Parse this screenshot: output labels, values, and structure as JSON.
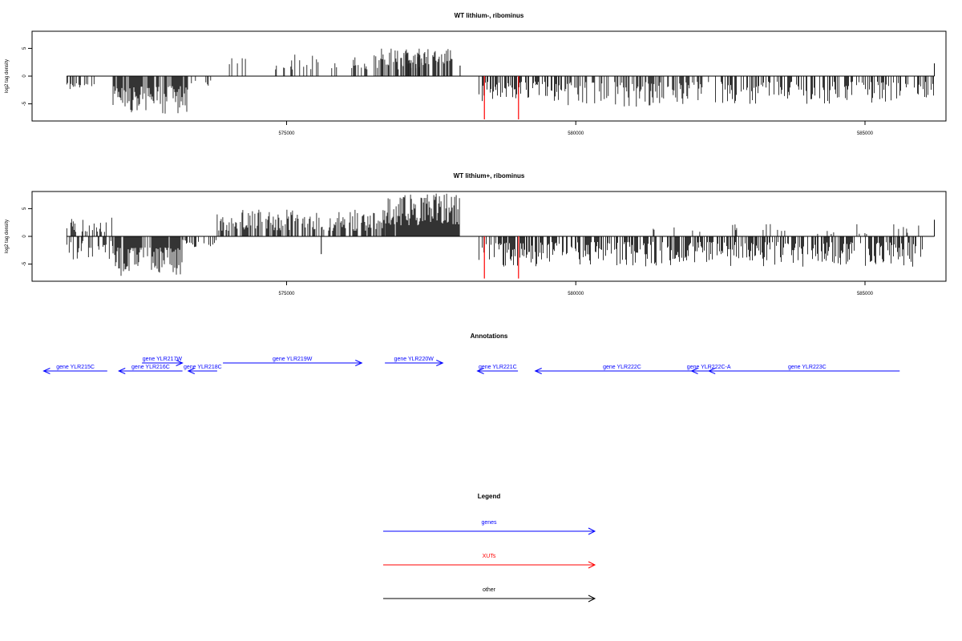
{
  "chart_data": [
    {
      "type": "bar",
      "title": "WT lithium-, ribominus",
      "ylabel": "log2 tag density",
      "xlabel": "",
      "xlim": [
        570600,
        586400
      ],
      "ylim": [
        -7.8,
        7.8
      ],
      "x_ticks": [
        575000,
        580000,
        585000
      ],
      "x_tick_labels": [
        "575000",
        "580000",
        "585000"
      ],
      "y_ticks": [
        -5,
        0,
        5
      ],
      "y_tick_labels": [
        "-5",
        "0",
        "5"
      ],
      "grid": false,
      "segments": [
        {
          "from": 571200,
          "to": 571700,
          "sign": -1,
          "min": 1.2,
          "max": 3.0,
          "density": 0.45
        },
        {
          "from": 572000,
          "to": 573300,
          "sign": -1,
          "min": 1.8,
          "max": 6.8,
          "density": 0.75
        },
        {
          "from": 573300,
          "to": 573700,
          "sign": -1,
          "min": 0.6,
          "max": 1.8,
          "density": 0.25
        },
        {
          "from": 573900,
          "to": 574300,
          "sign": 1,
          "min": 1.5,
          "max": 3.4,
          "density": 0.25
        },
        {
          "from": 574700,
          "to": 577400,
          "sign": 1,
          "min": 1.2,
          "max": 3.9,
          "density": 0.3
        },
        {
          "from": 576600,
          "to": 577900,
          "sign": 1,
          "min": 2.0,
          "max": 5.0,
          "density": 0.7
        },
        {
          "from": 578300,
          "to": 579800,
          "sign": -1,
          "min": 1.0,
          "max": 4.5,
          "density": 0.55
        },
        {
          "from": 579800,
          "to": 582300,
          "sign": -1,
          "min": 1.0,
          "max": 5.5,
          "density": 0.45
        },
        {
          "from": 582400,
          "to": 586200,
          "sign": -1,
          "min": 1.0,
          "max": 5.0,
          "density": 0.45
        }
      ],
      "points": [
        {
          "x": 578000,
          "y": 1.9
        },
        {
          "x": 586200,
          "y": 2.3
        }
      ],
      "highlights": [
        {
          "x": 578420,
          "y": -7.8,
          "color": "#ff0000"
        },
        {
          "x": 579010,
          "y": -7.8,
          "color": "#ff0000"
        }
      ],
      "bar_color": "#000000",
      "seed": 11
    },
    {
      "type": "bar",
      "title": "WT lithium+, ribominus",
      "ylabel": "log2 tag density",
      "xlabel": "",
      "xlim": [
        570600,
        586400
      ],
      "ylim": [
        -7.8,
        7.8
      ],
      "x_ticks": [
        575000,
        580000,
        585000
      ],
      "x_tick_labels": [
        "575000",
        "580000",
        "585000"
      ],
      "y_ticks": [
        -5,
        0,
        5
      ],
      "y_tick_labels": [
        "-5",
        "0",
        "5"
      ],
      "grid": false,
      "segments": [
        {
          "from": 571200,
          "to": 572000,
          "sign": 1,
          "min": 0.8,
          "max": 3.5,
          "density": 0.35
        },
        {
          "from": 571200,
          "to": 572000,
          "sign": -1,
          "min": 0.8,
          "max": 4.5,
          "density": 0.5
        },
        {
          "from": 572000,
          "to": 573200,
          "sign": -1,
          "min": 2.0,
          "max": 7.4,
          "density": 0.9
        },
        {
          "from": 573200,
          "to": 573800,
          "sign": -1,
          "min": 0.6,
          "max": 2.2,
          "density": 0.35
        },
        {
          "from": 573800,
          "to": 576700,
          "sign": 1,
          "min": 1.0,
          "max": 4.8,
          "density": 0.6
        },
        {
          "from": 576700,
          "to": 578000,
          "sign": 1,
          "min": 2.0,
          "max": 7.9,
          "density": 0.95
        },
        {
          "from": 578300,
          "to": 586000,
          "sign": -1,
          "min": 1.0,
          "max": 5.5,
          "density": 0.6
        },
        {
          "from": 580800,
          "to": 586000,
          "sign": 1,
          "min": 0.4,
          "max": 2.2,
          "density": 0.08
        }
      ],
      "points": [
        {
          "x": 575600,
          "y": -3.2
        },
        {
          "x": 586200,
          "y": 3.0
        }
      ],
      "highlights": [
        {
          "x": 578420,
          "y": -7.6,
          "color": "#ff0000"
        },
        {
          "x": 579010,
          "y": -7.6,
          "color": "#ff0000"
        }
      ],
      "bar_color": "#000000",
      "seed": 23
    }
  ],
  "annotations": {
    "title": "Annotations",
    "color": "#0000ff",
    "genes": [
      {
        "label": "gene YLR215C",
        "start": 570800,
        "end": 571900,
        "strand": "-",
        "row": 2
      },
      {
        "label": "gene YLR216C",
        "start": 572100,
        "end": 573200,
        "strand": "-",
        "row": 2
      },
      {
        "label": "gene YLR217W",
        "start": 572500,
        "end": 573200,
        "strand": "+",
        "row": 1
      },
      {
        "label": "gene YLR218C",
        "start": 573300,
        "end": 573800,
        "strand": "-",
        "row": 2
      },
      {
        "label": "gene YLR219W",
        "start": 573900,
        "end": 576300,
        "strand": "+",
        "row": 1
      },
      {
        "label": "gene YLR220W",
        "start": 576700,
        "end": 577700,
        "strand": "+",
        "row": 1
      },
      {
        "label": "gene YLR221C",
        "start": 578300,
        "end": 579000,
        "strand": "-",
        "row": 2
      },
      {
        "label": "gene YLR222C",
        "start": 579300,
        "end": 582300,
        "strand": "-",
        "row": 2
      },
      {
        "label": "gene YLR222C-A",
        "start": 582000,
        "end": 582300,
        "strand": "-",
        "row": 2
      },
      {
        "label": "gene YLR223C",
        "start": 582300,
        "end": 585600,
        "strand": "-",
        "row": 2
      }
    ]
  },
  "legend": {
    "title": "Legend",
    "items": [
      {
        "label": "genes",
        "color": "#0000ff"
      },
      {
        "label": "XUTs",
        "color": "#ff0000"
      },
      {
        "label": "other",
        "color": "#000000"
      }
    ]
  }
}
